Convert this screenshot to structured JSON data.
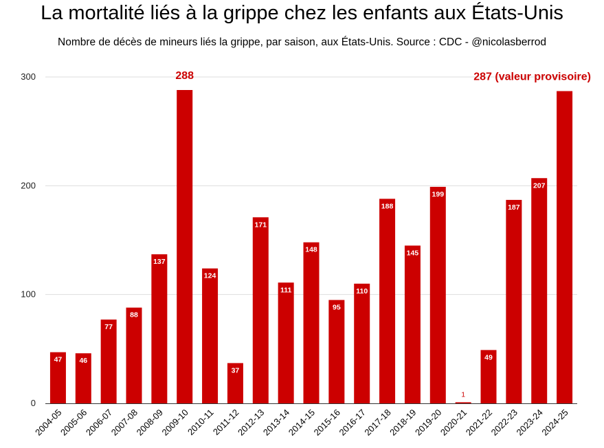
{
  "title": "La mortalité liés à la grippe chez les enfants aux États-Unis",
  "subtitle": "Nombre de décès de mineurs liés la grippe, par saison, aux États-Unis. Source : CDC - @nicolasberrod",
  "colors": {
    "bar": "#cc0000",
    "annotation": "#cc0000"
  },
  "chart_data": {
    "type": "bar",
    "title": "La mortalité liés à la grippe chez les enfants aux États-Unis",
    "subtitle": "Nombre de décès de mineurs liés la grippe, par saison, aux États-Unis. Source : CDC - @nicolasberrod",
    "xlabel": "",
    "ylabel": "",
    "ylim": [
      0,
      300
    ],
    "yticks": [
      0,
      100,
      200,
      300
    ],
    "grid": true,
    "categories": [
      "2004-05",
      "2005-06",
      "2006-07",
      "2007-08",
      "2008-09",
      "2009-10",
      "2010-11",
      "2011-12",
      "2012-13",
      "2013-14",
      "2014-15",
      "2015-16",
      "2016-17",
      "2017-18",
      "2018-19",
      "2019-20",
      "2020-21",
      "2021-22",
      "2022-23",
      "2023-24",
      "2024-25"
    ],
    "values": [
      47,
      46,
      77,
      88,
      137,
      288,
      124,
      37,
      171,
      111,
      148,
      95,
      110,
      188,
      145,
      199,
      1,
      49,
      187,
      207,
      287
    ],
    "data_labels": [
      "47",
      "46",
      "77",
      "88",
      "137",
      "",
      "124",
      "37",
      "171",
      "111",
      "148",
      "95",
      "110",
      "188",
      "145",
      "199",
      "1",
      "49",
      "187",
      "207",
      ""
    ],
    "annotations": [
      {
        "category": "2009-10",
        "text": "288"
      },
      {
        "category": "2024-25",
        "text": "287 (valeur provisoire)"
      }
    ]
  }
}
